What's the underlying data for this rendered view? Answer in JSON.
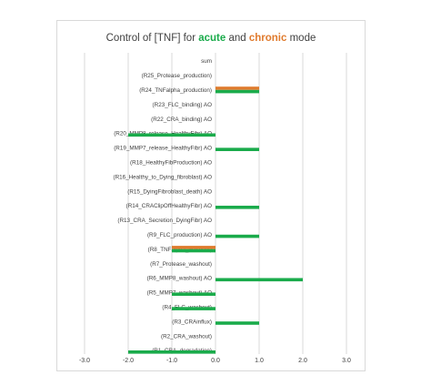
{
  "chart_data": {
    "type": "bar",
    "orientation": "horizontal",
    "title": {
      "prefix": "Control of [TNF] for ",
      "acute": "acute",
      "middle": " and ",
      "chronic": "chronic",
      "suffix": " mode"
    },
    "xlim": [
      -3.0,
      3.0
    ],
    "xticks": [
      -3.0,
      -2.0,
      -1.0,
      0.0,
      1.0,
      2.0,
      3.0
    ],
    "xtick_labels": [
      "-3.0",
      "-2.0",
      "-1.0",
      "0.0",
      "1.0",
      "2.0",
      "3.0"
    ],
    "grid": "vertical",
    "colors": {
      "acute": "#1aab4b",
      "chronic": "#e07b2e"
    },
    "categories": [
      "sum",
      "(R25_Protease_production)",
      "(R24_TNFalpha_production)",
      "(R23_FLC_binding) AO",
      "(R22_CRA_binding) AO",
      "(R20_MMP8_release_HealthyFibr) AO",
      "(R19_MMP7_release_HealthyFibr) AO",
      "(R18_HealthyFibProduction) AO",
      "(R16_Healthy_to_Dying_fibroblast) AO",
      "(R15_DyingFibroblast_death) AO",
      "(R14_CRAClipOffHealthyFibr) AO",
      "(R13_CRA_Secretion_DyingFibr) AO",
      "(R9_FLC_production) AO",
      "(R8_TNFalpha_washout)",
      "(R7_Protease_washout)",
      "(R6_MMP8_washout) AO",
      "(R5_MMP7_washout) AO",
      "(R4_FLC_washout)",
      "(R3_CRAinflux)",
      "(R2_CRA_washout)",
      "(R1_CRA_degradation)"
    ],
    "series": [
      {
        "key": "acute",
        "values": [
          0,
          0,
          1.0,
          0,
          0,
          -2.0,
          1.0,
          0,
          0,
          0,
          1.0,
          0,
          1.0,
          -1.0,
          0,
          2.0,
          -1.0,
          -1.0,
          1.0,
          0,
          -2.0
        ]
      },
      {
        "key": "chronic",
        "values": [
          0,
          0,
          1.0,
          0,
          0,
          0,
          0,
          0,
          0,
          0,
          0,
          0,
          0,
          -1.0,
          0,
          0,
          0,
          0,
          0,
          0,
          0
        ]
      }
    ]
  }
}
